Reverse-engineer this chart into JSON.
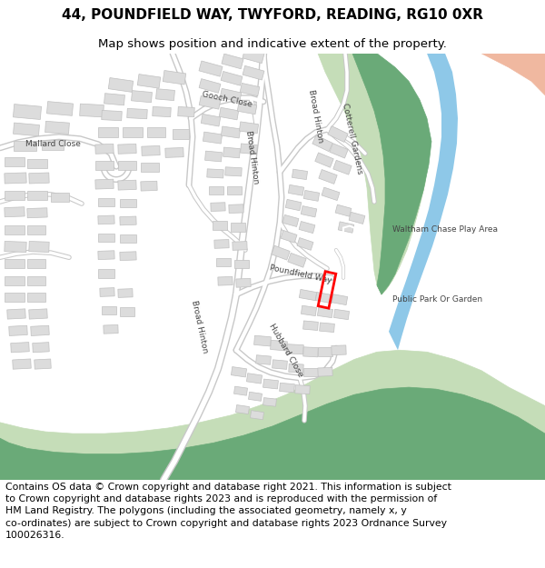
{
  "title": "44, POUNDFIELD WAY, TWYFORD, READING, RG10 0XR",
  "subtitle": "Map shows position and indicative extent of the property.",
  "footer_text": "Contains OS data © Crown copyright and database right 2021. This information is subject to Crown copyright and database rights 2023 and is reproduced with the permission of HM Land Registry. The polygons (including the associated geometry, namely x, y co-ordinates) are subject to Crown copyright and database rights 2023 Ordnance Survey 100026316.",
  "bg_color": "#ffffff",
  "map_bg": "#f0f0f0",
  "road_color": "#ffffff",
  "road_outline": "#c8c8c8",
  "building_fill": "#dcdcdc",
  "building_edge": "#c0c0c0",
  "green_dark": "#6aaa78",
  "green_light": "#c5ddb8",
  "river_color": "#8ec8e8",
  "salmon_color": "#f0b8a0",
  "plot_color": "#ff0000",
  "label_color": "#444444",
  "title_fontsize": 11,
  "subtitle_fontsize": 9.5,
  "footer_fontsize": 7.8,
  "label_fontsize": 6.5
}
